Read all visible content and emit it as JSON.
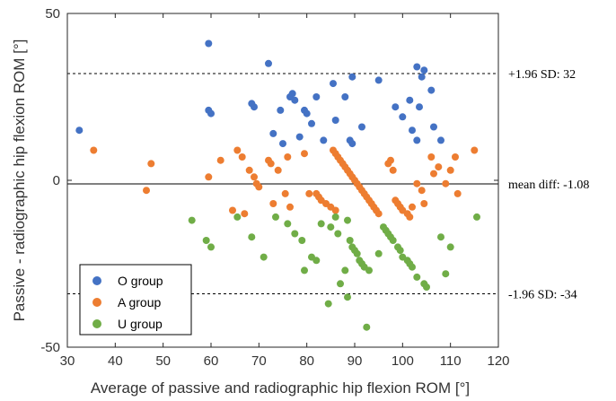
{
  "chart_data": {
    "type": "scatter",
    "title": "",
    "xlabel": "Average of passive and radiographic hip flexion ROM [°]",
    "ylabel": "Passive - radiographic hip flexion ROM [°]",
    "xlim": [
      30,
      120
    ],
    "ylim": [
      -50,
      50
    ],
    "xticks": [
      "30",
      "40",
      "50",
      "60",
      "70",
      "80",
      "90",
      "100",
      "110",
      "120"
    ],
    "yticks": [
      "-50",
      "0",
      "50"
    ],
    "legend_position": "bottom-left",
    "grid": false,
    "reference_lines": [
      {
        "name": "upper-loa",
        "y": 32,
        "style": "dashed",
        "label": "+1.96 SD: 32"
      },
      {
        "name": "mean-diff",
        "y": -1.08,
        "style": "solid",
        "label": "mean diff: -1.08"
      },
      {
        "name": "lower-loa",
        "y": -34,
        "style": "dashed",
        "label": "-1.96 SD: -34"
      }
    ],
    "series": [
      {
        "name": "O group",
        "color": "#4472C4",
        "points": [
          [
            32.5,
            15
          ],
          [
            59.5,
            41
          ],
          [
            59.5,
            21
          ],
          [
            60,
            20
          ],
          [
            68.5,
            23
          ],
          [
            69,
            22
          ],
          [
            72,
            35
          ],
          [
            73,
            14
          ],
          [
            74.5,
            21
          ],
          [
            75,
            11
          ],
          [
            76.5,
            25
          ],
          [
            77,
            26
          ],
          [
            77.5,
            24
          ],
          [
            78.5,
            13
          ],
          [
            79.5,
            21
          ],
          [
            80,
            20
          ],
          [
            81,
            17
          ],
          [
            82,
            25
          ],
          [
            83.5,
            12
          ],
          [
            85.5,
            29
          ],
          [
            86,
            18
          ],
          [
            88,
            25
          ],
          [
            89,
            12
          ],
          [
            89.5,
            11
          ],
          [
            89.5,
            31
          ],
          [
            91.5,
            16
          ],
          [
            95,
            30
          ],
          [
            98.5,
            22
          ],
          [
            100,
            19
          ],
          [
            101.5,
            24
          ],
          [
            102,
            15
          ],
          [
            103,
            34
          ],
          [
            103,
            12
          ],
          [
            103.5,
            22
          ],
          [
            104,
            31
          ],
          [
            104.5,
            33
          ],
          [
            106,
            27
          ],
          [
            106.5,
            16
          ],
          [
            108,
            12
          ]
        ]
      },
      {
        "name": "A group",
        "color": "#ED7D31",
        "points": [
          [
            35.5,
            9
          ],
          [
            46.5,
            -3
          ],
          [
            47.5,
            5
          ],
          [
            59.5,
            1
          ],
          [
            62,
            6
          ],
          [
            64.5,
            -9
          ],
          [
            65.5,
            9
          ],
          [
            66.5,
            7
          ],
          [
            67,
            -10
          ],
          [
            68,
            3
          ],
          [
            69,
            1
          ],
          [
            69.5,
            -1
          ],
          [
            70,
            -2
          ],
          [
            72,
            6
          ],
          [
            72.5,
            5
          ],
          [
            73,
            -7
          ],
          [
            74,
            3
          ],
          [
            75.5,
            -4
          ],
          [
            76,
            7
          ],
          [
            76.5,
            -8
          ],
          [
            79.5,
            8
          ],
          [
            80.5,
            -4
          ],
          [
            82,
            -4
          ],
          [
            82.5,
            -5
          ],
          [
            83,
            -6
          ],
          [
            84,
            -7
          ],
          [
            85,
            -8
          ],
          [
            85.5,
            9
          ],
          [
            86,
            -9
          ],
          [
            86,
            8
          ],
          [
            86.5,
            7
          ],
          [
            87,
            6
          ],
          [
            87.5,
            5
          ],
          [
            88,
            4
          ],
          [
            88.5,
            3
          ],
          [
            89,
            2
          ],
          [
            89.5,
            1
          ],
          [
            90,
            0
          ],
          [
            90.5,
            -1
          ],
          [
            91,
            -2
          ],
          [
            91.5,
            -3
          ],
          [
            92,
            -4
          ],
          [
            92.5,
            -5
          ],
          [
            93,
            -6
          ],
          [
            93.5,
            -7
          ],
          [
            94,
            -8
          ],
          [
            94.5,
            -9
          ],
          [
            95,
            -10
          ],
          [
            97,
            5
          ],
          [
            97.5,
            6
          ],
          [
            98,
            3
          ],
          [
            98.5,
            -6
          ],
          [
            99,
            -7
          ],
          [
            99.5,
            -8
          ],
          [
            100,
            -9
          ],
          [
            101,
            -10
          ],
          [
            101.5,
            -11
          ],
          [
            102,
            -8
          ],
          [
            103,
            -1
          ],
          [
            104,
            -3
          ],
          [
            104.5,
            -7
          ],
          [
            106,
            7
          ],
          [
            106.5,
            2
          ],
          [
            107.5,
            4
          ],
          [
            109,
            -1
          ],
          [
            110,
            3
          ],
          [
            111,
            7
          ],
          [
            111.5,
            -4
          ],
          [
            115,
            9
          ]
        ]
      },
      {
        "name": "U group",
        "color": "#70AD47",
        "points": [
          [
            56,
            -12
          ],
          [
            59,
            -18
          ],
          [
            60,
            -20
          ],
          [
            65.5,
            -11
          ],
          [
            68.5,
            -17
          ],
          [
            71,
            -23
          ],
          [
            73.5,
            -11
          ],
          [
            76,
            -13
          ],
          [
            77.5,
            -16
          ],
          [
            79,
            -18
          ],
          [
            79.5,
            -27
          ],
          [
            81,
            -23
          ],
          [
            82,
            -24
          ],
          [
            83,
            -13
          ],
          [
            84.5,
            -37
          ],
          [
            85,
            -14
          ],
          [
            86,
            -11
          ],
          [
            86.5,
            -16
          ],
          [
            87,
            -31
          ],
          [
            88,
            -27
          ],
          [
            88.5,
            -35
          ],
          [
            88.5,
            -12
          ],
          [
            89,
            -18
          ],
          [
            89.5,
            -20
          ],
          [
            90,
            -21
          ],
          [
            90.5,
            -22
          ],
          [
            91,
            -24
          ],
          [
            91.5,
            -25
          ],
          [
            92,
            -26
          ],
          [
            92.5,
            -44
          ],
          [
            93,
            -27
          ],
          [
            95,
            -22
          ],
          [
            96,
            -14
          ],
          [
            96.5,
            -15
          ],
          [
            97,
            -16
          ],
          [
            97.5,
            -17
          ],
          [
            98,
            -18
          ],
          [
            99,
            -20
          ],
          [
            99.5,
            -21
          ],
          [
            100,
            -23
          ],
          [
            101,
            -24
          ],
          [
            101.5,
            -25
          ],
          [
            102,
            -26
          ],
          [
            103,
            -29
          ],
          [
            104.5,
            -31
          ],
          [
            105,
            -32
          ],
          [
            108,
            -17
          ],
          [
            109,
            -28
          ],
          [
            110,
            -20
          ],
          [
            115.5,
            -11
          ]
        ]
      }
    ]
  }
}
